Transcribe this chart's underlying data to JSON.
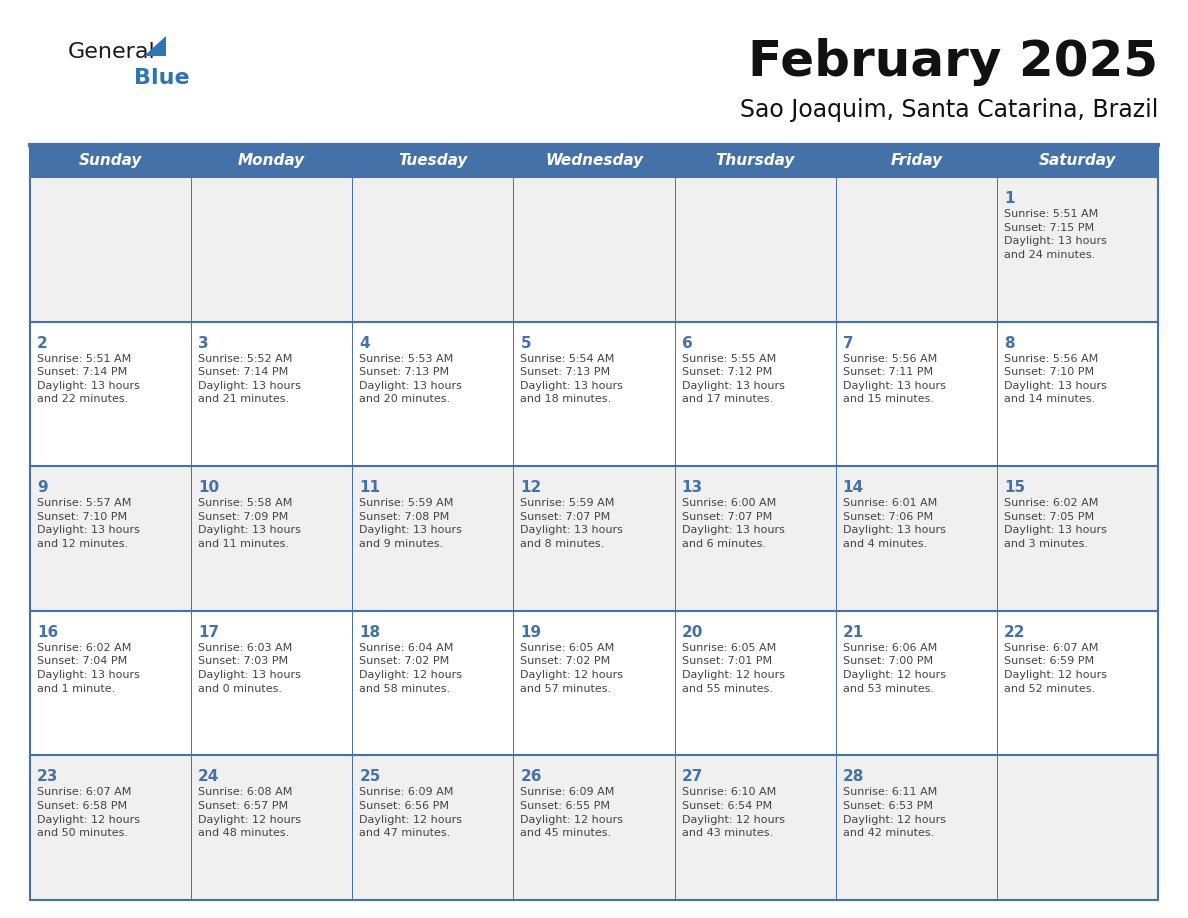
{
  "title": "February 2025",
  "subtitle": "Sao Joaquim, Santa Catarina, Brazil",
  "header_bg_color": "#4472a8",
  "header_text_color": "#ffffff",
  "cell_bg_white": "#ffffff",
  "cell_bg_gray": "#f0f0f0",
  "day_number_color": "#4472a8",
  "text_color": "#444444",
  "border_color": "#4472a8",
  "separator_color": "#4472a8",
  "days_of_week": [
    "Sunday",
    "Monday",
    "Tuesday",
    "Wednesday",
    "Thursday",
    "Friday",
    "Saturday"
  ],
  "weeks": [
    [
      {
        "day": null,
        "info": null
      },
      {
        "day": null,
        "info": null
      },
      {
        "day": null,
        "info": null
      },
      {
        "day": null,
        "info": null
      },
      {
        "day": null,
        "info": null
      },
      {
        "day": null,
        "info": null
      },
      {
        "day": 1,
        "info": "Sunrise: 5:51 AM\nSunset: 7:15 PM\nDaylight: 13 hours\nand 24 minutes."
      }
    ],
    [
      {
        "day": 2,
        "info": "Sunrise: 5:51 AM\nSunset: 7:14 PM\nDaylight: 13 hours\nand 22 minutes."
      },
      {
        "day": 3,
        "info": "Sunrise: 5:52 AM\nSunset: 7:14 PM\nDaylight: 13 hours\nand 21 minutes."
      },
      {
        "day": 4,
        "info": "Sunrise: 5:53 AM\nSunset: 7:13 PM\nDaylight: 13 hours\nand 20 minutes."
      },
      {
        "day": 5,
        "info": "Sunrise: 5:54 AM\nSunset: 7:13 PM\nDaylight: 13 hours\nand 18 minutes."
      },
      {
        "day": 6,
        "info": "Sunrise: 5:55 AM\nSunset: 7:12 PM\nDaylight: 13 hours\nand 17 minutes."
      },
      {
        "day": 7,
        "info": "Sunrise: 5:56 AM\nSunset: 7:11 PM\nDaylight: 13 hours\nand 15 minutes."
      },
      {
        "day": 8,
        "info": "Sunrise: 5:56 AM\nSunset: 7:10 PM\nDaylight: 13 hours\nand 14 minutes."
      }
    ],
    [
      {
        "day": 9,
        "info": "Sunrise: 5:57 AM\nSunset: 7:10 PM\nDaylight: 13 hours\nand 12 minutes."
      },
      {
        "day": 10,
        "info": "Sunrise: 5:58 AM\nSunset: 7:09 PM\nDaylight: 13 hours\nand 11 minutes."
      },
      {
        "day": 11,
        "info": "Sunrise: 5:59 AM\nSunset: 7:08 PM\nDaylight: 13 hours\nand 9 minutes."
      },
      {
        "day": 12,
        "info": "Sunrise: 5:59 AM\nSunset: 7:07 PM\nDaylight: 13 hours\nand 8 minutes."
      },
      {
        "day": 13,
        "info": "Sunrise: 6:00 AM\nSunset: 7:07 PM\nDaylight: 13 hours\nand 6 minutes."
      },
      {
        "day": 14,
        "info": "Sunrise: 6:01 AM\nSunset: 7:06 PM\nDaylight: 13 hours\nand 4 minutes."
      },
      {
        "day": 15,
        "info": "Sunrise: 6:02 AM\nSunset: 7:05 PM\nDaylight: 13 hours\nand 3 minutes."
      }
    ],
    [
      {
        "day": 16,
        "info": "Sunrise: 6:02 AM\nSunset: 7:04 PM\nDaylight: 13 hours\nand 1 minute."
      },
      {
        "day": 17,
        "info": "Sunrise: 6:03 AM\nSunset: 7:03 PM\nDaylight: 13 hours\nand 0 minutes."
      },
      {
        "day": 18,
        "info": "Sunrise: 6:04 AM\nSunset: 7:02 PM\nDaylight: 12 hours\nand 58 minutes."
      },
      {
        "day": 19,
        "info": "Sunrise: 6:05 AM\nSunset: 7:02 PM\nDaylight: 12 hours\nand 57 minutes."
      },
      {
        "day": 20,
        "info": "Sunrise: 6:05 AM\nSunset: 7:01 PM\nDaylight: 12 hours\nand 55 minutes."
      },
      {
        "day": 21,
        "info": "Sunrise: 6:06 AM\nSunset: 7:00 PM\nDaylight: 12 hours\nand 53 minutes."
      },
      {
        "day": 22,
        "info": "Sunrise: 6:07 AM\nSunset: 6:59 PM\nDaylight: 12 hours\nand 52 minutes."
      }
    ],
    [
      {
        "day": 23,
        "info": "Sunrise: 6:07 AM\nSunset: 6:58 PM\nDaylight: 12 hours\nand 50 minutes."
      },
      {
        "day": 24,
        "info": "Sunrise: 6:08 AM\nSunset: 6:57 PM\nDaylight: 12 hours\nand 48 minutes."
      },
      {
        "day": 25,
        "info": "Sunrise: 6:09 AM\nSunset: 6:56 PM\nDaylight: 12 hours\nand 47 minutes."
      },
      {
        "day": 26,
        "info": "Sunrise: 6:09 AM\nSunset: 6:55 PM\nDaylight: 12 hours\nand 45 minutes."
      },
      {
        "day": 27,
        "info": "Sunrise: 6:10 AM\nSunset: 6:54 PM\nDaylight: 12 hours\nand 43 minutes."
      },
      {
        "day": 28,
        "info": "Sunrise: 6:11 AM\nSunset: 6:53 PM\nDaylight: 12 hours\nand 42 minutes."
      },
      {
        "day": null,
        "info": null
      }
    ]
  ],
  "logo_text1": "General",
  "logo_text2": "Blue",
  "logo_color1": "#1a1a1a",
  "logo_color2": "#2e75b6",
  "triangle_color": "#2e75b6"
}
